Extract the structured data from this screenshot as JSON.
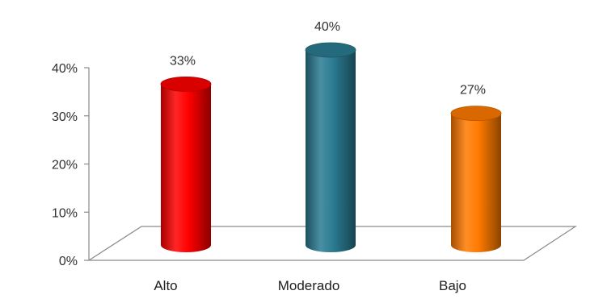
{
  "chart_data": {
    "type": "bar",
    "style": "3d-cylinder",
    "categories": [
      "Alto",
      "Moderado",
      "Bajo"
    ],
    "values": [
      33,
      40,
      27
    ],
    "data_labels": [
      "33%",
      "40%",
      "27%"
    ],
    "colors": [
      "#ff0000",
      "#2a7b92",
      "#ff7a00"
    ],
    "yticks": [
      "0%",
      "10%",
      "20%",
      "30%",
      "40%"
    ],
    "ylim": [
      0,
      40
    ],
    "grid": false,
    "legend": false
  }
}
